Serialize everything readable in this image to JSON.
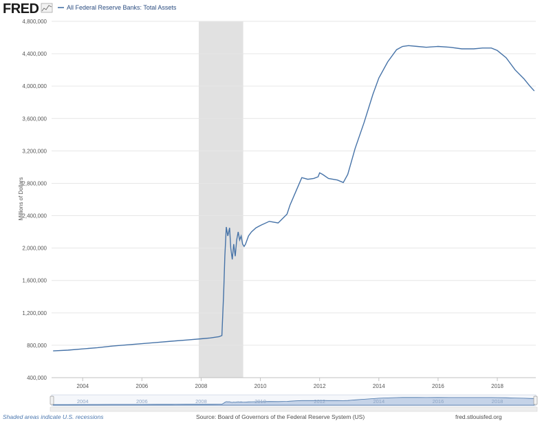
{
  "header": {
    "logo_text": "FRED",
    "legend_label": "All Federal Reserve Banks: Total Assets"
  },
  "footer": {
    "recession_note": "Shaded areas indicate U.S. recessions",
    "source": "Source: Board of Governors of the Federal Reserve System (US)",
    "site": "fred.stlouisfed.org"
  },
  "colors": {
    "series": "#4572a7",
    "recession": "#e1e1e1",
    "grid": "#e6e6e6",
    "navigator_fill": "#c5d3e8",
    "navigator_line": "#4572a7"
  },
  "chart_data": {
    "type": "line",
    "title": "",
    "xlabel": "",
    "ylabel": "Millions of Dollars",
    "xlim": [
      2002.95,
      2019.3
    ],
    "ylim": [
      400000,
      4800000
    ],
    "yticks": [
      400000,
      800000,
      1200000,
      1600000,
      2000000,
      2400000,
      2800000,
      3200000,
      3600000,
      4000000,
      4400000,
      4800000
    ],
    "ytick_labels": [
      "400,000",
      "800,000",
      "1,200,000",
      "1,600,000",
      "2,000,000",
      "2,400,000",
      "2,800,000",
      "3,200,000",
      "3,600,000",
      "4,000,000",
      "4,400,000",
      "4,800,000"
    ],
    "xticks": [
      2004,
      2006,
      2008,
      2010,
      2012,
      2014,
      2016,
      2018
    ],
    "xtick_labels": [
      "2004",
      "2006",
      "2008",
      "2010",
      "2012",
      "2014",
      "2016",
      "2018"
    ],
    "grid": "horizontal",
    "legend": "top-left",
    "recessions": [
      [
        2007.92,
        2009.42
      ]
    ],
    "series": [
      {
        "name": "All Federal Reserve Banks: Total Assets",
        "x": [
          2003.0,
          2003.5,
          2004.0,
          2004.5,
          2005.0,
          2005.5,
          2006.0,
          2006.5,
          2007.0,
          2007.5,
          2008.0,
          2008.3,
          2008.6,
          2008.7,
          2008.76,
          2008.8,
          2008.85,
          2008.9,
          2008.96,
          2009.0,
          2009.05,
          2009.1,
          2009.15,
          2009.2,
          2009.25,
          2009.3,
          2009.35,
          2009.4,
          2009.45,
          2009.5,
          2009.6,
          2009.7,
          2009.85,
          2010.0,
          2010.3,
          2010.6,
          2010.9,
          2011.0,
          2011.2,
          2011.4,
          2011.6,
          2011.8,
          2011.95,
          2012.0,
          2012.1,
          2012.3,
          2012.6,
          2012.8,
          2012.95,
          2013.2,
          2013.5,
          2013.8,
          2014.0,
          2014.3,
          2014.6,
          2014.8,
          2015.0,
          2015.3,
          2015.6,
          2016.0,
          2016.4,
          2016.8,
          2017.0,
          2017.2,
          2017.5,
          2017.8,
          2018.0,
          2018.3,
          2018.6,
          2018.9,
          2019.1,
          2019.25
        ],
        "values": [
          730000,
          740000,
          755000,
          770000,
          790000,
          805000,
          820000,
          835000,
          850000,
          865000,
          880000,
          890000,
          905000,
          920000,
          1450000,
          1900000,
          2260000,
          2150000,
          2250000,
          2000000,
          1860000,
          2050000,
          1900000,
          2100000,
          2200000,
          2100000,
          2150000,
          2050000,
          2020000,
          2050000,
          2150000,
          2200000,
          2250000,
          2280000,
          2330000,
          2310000,
          2420000,
          2530000,
          2700000,
          2870000,
          2850000,
          2860000,
          2880000,
          2930000,
          2910000,
          2860000,
          2840000,
          2810000,
          2910000,
          3230000,
          3550000,
          3900000,
          4100000,
          4300000,
          4450000,
          4490000,
          4500000,
          4490000,
          4480000,
          4490000,
          4480000,
          4460000,
          4460000,
          4460000,
          4470000,
          4470000,
          4440000,
          4350000,
          4200000,
          4090000,
          4000000,
          3940000
        ]
      }
    ]
  }
}
